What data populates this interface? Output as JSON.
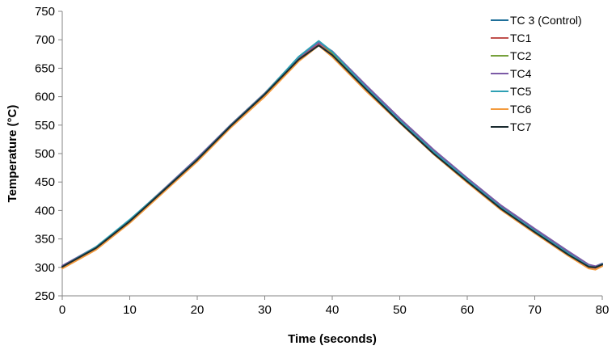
{
  "chart_data": {
    "type": "line",
    "title": "",
    "xlabel": "Time (seconds)",
    "ylabel": "Temperature (°C)",
    "xlim": [
      0,
      80
    ],
    "ylim": [
      250,
      750
    ],
    "xticks": [
      0,
      10,
      20,
      30,
      40,
      50,
      60,
      70,
      80
    ],
    "yticks": [
      250,
      300,
      350,
      400,
      450,
      500,
      550,
      600,
      650,
      700,
      750
    ],
    "grid": false,
    "legend_position": "top-right",
    "x": [
      0,
      5,
      10,
      15,
      20,
      25,
      30,
      35,
      38,
      40,
      45,
      50,
      55,
      60,
      65,
      70,
      75,
      78,
      79,
      80
    ],
    "series": [
      {
        "name": "TC 3 (Control)",
        "color": "#1f6f99",
        "values": [
          302,
          335,
          382,
          436,
          490,
          550,
          605,
          668,
          697,
          678,
          618,
          560,
          505,
          455,
          407,
          365,
          325,
          303,
          300,
          305
        ]
      },
      {
        "name": "TC1",
        "color": "#c0504d",
        "values": [
          300,
          333,
          380,
          434,
          488,
          548,
          603,
          666,
          692,
          674,
          614,
          556,
          500,
          450,
          402,
          362,
          322,
          300,
          299,
          304
        ]
      },
      {
        "name": "TC2",
        "color": "#77a13c",
        "values": [
          302,
          336,
          383,
          437,
          491,
          551,
          606,
          669,
          696,
          677,
          616,
          558,
          503,
          453,
          405,
          364,
          324,
          302,
          301,
          305
        ]
      },
      {
        "name": "TC4",
        "color": "#7b5aa6",
        "values": [
          303,
          336,
          383,
          437,
          492,
          551,
          606,
          669,
          695,
          680,
          620,
          562,
          507,
          457,
          409,
          368,
          328,
          305,
          302,
          307
        ]
      },
      {
        "name": "TC5",
        "color": "#2ea0b4",
        "values": [
          301,
          336,
          384,
          436,
          490,
          550,
          605,
          670,
          698,
          679,
          616,
          558,
          503,
          454,
          405,
          364,
          324,
          302,
          300,
          306
        ]
      },
      {
        "name": "TC6",
        "color": "#f39a3c",
        "values": [
          298,
          331,
          378,
          432,
          486,
          546,
          600,
          662,
          690,
          670,
          610,
          554,
          499,
          449,
          401,
          360,
          320,
          298,
          296,
          302
        ]
      },
      {
        "name": "TC7",
        "color": "#1a2a2f",
        "values": [
          301,
          334,
          381,
          435,
          489,
          549,
          604,
          665,
          690,
          673,
          613,
          555,
          500,
          451,
          403,
          362,
          322,
          301,
          300,
          305
        ]
      }
    ]
  }
}
